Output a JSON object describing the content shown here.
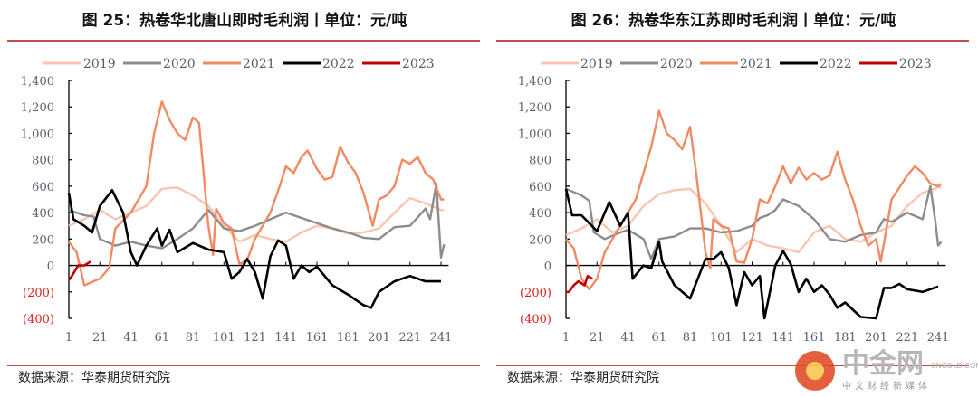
{
  "charts_meta": [
    {
      "title": "图 25：热卷华北唐山即时毛利润丨单位：元/吨",
      "source": "数据来源：华泰期货研究院"
    },
    {
      "title": "图 26：热卷华东江苏即时毛利润丨单位：元/吨",
      "source": "数据来源：华泰期货研究院"
    }
  ],
  "watermark": {
    "name": "中金网",
    "subtitle": "中文财经新媒体",
    "domain": "CNGOLD.COM"
  },
  "colors": {
    "2019": "#f8c6b0",
    "2020": "#8c8c8c",
    "2021": "#ef8a62",
    "2022": "#000000",
    "2023": "#c00000",
    "axis_label": "#5a6070",
    "negative_label": "#e02020",
    "rule": "#c0504d"
  },
  "chart_data": [
    {
      "type": "line",
      "title": "图 25：热卷华北唐山即时毛利润丨单位：元/吨",
      "xlabel": "",
      "ylabel": "元/吨",
      "ylim": [
        -400,
        1400
      ],
      "yticks": [
        1400,
        1200,
        1000,
        800,
        600,
        400,
        200,
        0,
        -200,
        -400
      ],
      "ytick_labels": [
        "1,400",
        "1,200",
        "1,000",
        "800",
        "600",
        "400",
        "200",
        "0",
        "(200)",
        "(400)"
      ],
      "xlim": [
        1,
        243
      ],
      "xticks": [
        1,
        21,
        41,
        61,
        81,
        101,
        121,
        141,
        161,
        181,
        201,
        221,
        241
      ],
      "xtick_labels": [
        "1",
        "21",
        "41",
        "61",
        "81",
        "101",
        "121",
        "141",
        "161",
        "181",
        "201",
        "221",
        "241"
      ],
      "legend": "top",
      "series": [
        {
          "name": "2019",
          "x": [
            1,
            11,
            21,
            31,
            41,
            51,
            61,
            71,
            81,
            91,
            101,
            111,
            121,
            131,
            141,
            151,
            161,
            171,
            181,
            191,
            201,
            211,
            221,
            231,
            241,
            243
          ],
          "values": [
            300,
            350,
            420,
            350,
            400,
            450,
            580,
            590,
            530,
            450,
            300,
            180,
            230,
            200,
            180,
            250,
            300,
            280,
            240,
            250,
            280,
            400,
            510,
            470,
            420,
            420
          ]
        },
        {
          "name": "2020",
          "x": [
            1,
            11,
            17,
            21,
            31,
            41,
            51,
            61,
            71,
            81,
            91,
            101,
            111,
            121,
            131,
            141,
            151,
            161,
            171,
            181,
            191,
            201,
            211,
            221,
            231,
            234,
            238,
            241,
            243
          ],
          "values": [
            420,
            380,
            370,
            200,
            150,
            180,
            150,
            130,
            200,
            280,
            420,
            280,
            260,
            300,
            350,
            400,
            360,
            320,
            280,
            250,
            210,
            200,
            290,
            300,
            430,
            350,
            620,
            60,
            160
          ]
        },
        {
          "name": "2021",
          "x": [
            1,
            6,
            11,
            21,
            27,
            31,
            41,
            51,
            56,
            61,
            66,
            71,
            76,
            81,
            85,
            91,
            94,
            96,
            101,
            106,
            111,
            116,
            121,
            131,
            137,
            141,
            146,
            151,
            155,
            161,
            166,
            171,
            176,
            181,
            186,
            191,
            197,
            201,
            206,
            211,
            216,
            221,
            226,
            231,
            236,
            241,
            243
          ],
          "values": [
            180,
            100,
            -150,
            -100,
            -20,
            280,
            400,
            600,
            1000,
            1240,
            1100,
            1000,
            950,
            1120,
            1080,
            300,
            80,
            430,
            320,
            280,
            10,
            40,
            200,
            400,
            600,
            750,
            700,
            820,
            870,
            730,
            650,
            670,
            900,
            780,
            700,
            550,
            300,
            500,
            530,
            600,
            800,
            770,
            820,
            700,
            650,
            500,
            500
          ]
        },
        {
          "name": "2022",
          "x": [
            1,
            4,
            11,
            16,
            21,
            29,
            36,
            41,
            45,
            51,
            58,
            61,
            66,
            71,
            81,
            91,
            101,
            106,
            111,
            116,
            121,
            126,
            131,
            136,
            141,
            146,
            151,
            156,
            161,
            171,
            181,
            191,
            196,
            201,
            211,
            221,
            231,
            241
          ],
          "values": [
            550,
            350,
            300,
            250,
            450,
            570,
            400,
            100,
            0,
            150,
            280,
            150,
            270,
            100,
            170,
            120,
            100,
            -100,
            -50,
            50,
            -50,
            -250,
            70,
            190,
            150,
            -100,
            0,
            -50,
            -10,
            -150,
            -220,
            -300,
            -320,
            -200,
            -120,
            -80,
            -120,
            -120
          ]
        },
        {
          "name": "2023",
          "x": [
            1,
            3,
            7,
            11,
            15
          ],
          "values": [
            -110,
            -80,
            0,
            0,
            30
          ]
        }
      ]
    },
    {
      "type": "line",
      "title": "图 26：热卷华东江苏即时毛利润丨单位：元/吨",
      "xlabel": "",
      "ylabel": "元/吨",
      "ylim": [
        -400,
        1400
      ],
      "yticks": [
        1400,
        1200,
        1000,
        800,
        600,
        400,
        200,
        0,
        -200,
        -400
      ],
      "ytick_labels": [
        "1,400",
        "1,200",
        "1,000",
        "800",
        "600",
        "400",
        "200",
        "0",
        "(200)",
        "(400)"
      ],
      "xlim": [
        1,
        243
      ],
      "xticks": [
        1,
        21,
        41,
        61,
        81,
        101,
        121,
        141,
        161,
        181,
        201,
        221,
        241
      ],
      "xtick_labels": [
        "1",
        "21",
        "41",
        "61",
        "81",
        "101",
        "121",
        "141",
        "161",
        "181",
        "201",
        "221",
        "241"
      ],
      "legend": "top",
      "series": [
        {
          "name": "2019",
          "x": [
            1,
            11,
            21,
            31,
            41,
            51,
            61,
            71,
            81,
            91,
            101,
            111,
            121,
            131,
            141,
            151,
            161,
            171,
            181,
            191,
            201,
            211,
            221,
            231,
            241,
            243
          ],
          "values": [
            230,
            280,
            350,
            250,
            300,
            450,
            540,
            570,
            580,
            470,
            300,
            100,
            200,
            150,
            130,
            100,
            250,
            300,
            200,
            180,
            250,
            300,
            450,
            550,
            590,
            590
          ]
        },
        {
          "name": "2020",
          "x": [
            1,
            11,
            16,
            19,
            26,
            36,
            41,
            51,
            56,
            61,
            71,
            81,
            91,
            101,
            111,
            121,
            126,
            131,
            136,
            141,
            151,
            161,
            171,
            181,
            191,
            201,
            206,
            211,
            221,
            231,
            236,
            239,
            241,
            243
          ],
          "values": [
            580,
            530,
            490,
            250,
            200,
            250,
            270,
            200,
            50,
            200,
            220,
            280,
            280,
            250,
            260,
            300,
            360,
            380,
            420,
            500,
            450,
            350,
            200,
            180,
            230,
            250,
            350,
            330,
            400,
            350,
            600,
            350,
            150,
            180
          ]
        },
        {
          "name": "2021",
          "x": [
            1,
            6,
            11,
            16,
            21,
            26,
            36,
            41,
            46,
            51,
            56,
            61,
            66,
            71,
            76,
            81,
            85,
            91,
            94,
            96,
            101,
            106,
            111,
            116,
            121,
            126,
            131,
            136,
            141,
            146,
            151,
            156,
            161,
            166,
            171,
            176,
            181,
            186,
            191,
            196,
            201,
            204,
            211,
            221,
            226,
            231,
            236,
            241,
            243
          ],
          "values": [
            200,
            130,
            -100,
            -180,
            -100,
            100,
            300,
            400,
            500,
            700,
            900,
            1170,
            1000,
            950,
            880,
            1050,
            700,
            100,
            -20,
            350,
            300,
            280,
            30,
            20,
            200,
            500,
            470,
            600,
            750,
            620,
            740,
            650,
            700,
            650,
            680,
            860,
            650,
            500,
            300,
            150,
            200,
            30,
            500,
            680,
            750,
            700,
            620,
            600,
            620
          ]
        },
        {
          "name": "2022",
          "x": [
            1,
            5,
            11,
            21,
            26,
            29,
            36,
            41,
            44,
            51,
            56,
            61,
            63,
            71,
            81,
            86,
            91,
            96,
            101,
            106,
            111,
            116,
            121,
            126,
            129,
            136,
            141,
            146,
            151,
            156,
            161,
            166,
            171,
            176,
            181,
            191,
            201,
            206,
            211,
            216,
            221,
            231,
            241
          ],
          "values": [
            580,
            380,
            380,
            260,
            400,
            480,
            300,
            400,
            -100,
            0,
            -20,
            180,
            30,
            -150,
            -250,
            -100,
            50,
            50,
            100,
            -20,
            -300,
            -50,
            -150,
            -80,
            -400,
            0,
            110,
            10,
            -200,
            -100,
            -200,
            -150,
            -220,
            -320,
            -280,
            -390,
            -400,
            -170,
            -170,
            -140,
            -180,
            -200,
            -160
          ]
        },
        {
          "name": "2023",
          "x": [
            1,
            3,
            6,
            9,
            13,
            15,
            18
          ],
          "values": [
            -200,
            -200,
            -150,
            -120,
            -150,
            -80,
            -100
          ]
        }
      ]
    }
  ]
}
